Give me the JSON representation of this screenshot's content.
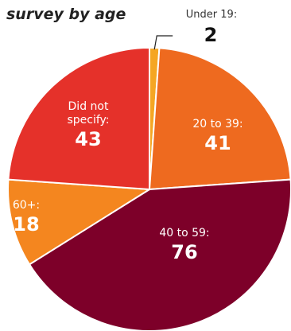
{
  "chart_data": {
    "type": "pie",
    "title": "survey by age",
    "start_angle_deg": 0,
    "direction": "clockwise",
    "slices": [
      {
        "label": "Under 19:",
        "value": 2,
        "color": "#f5a623",
        "label_position": "outside"
      },
      {
        "label": "20 to 39:",
        "value": 41,
        "color": "#ee6a1f",
        "label_position": "inside"
      },
      {
        "label": "40 to 59:",
        "value": 76,
        "color": "#7d0029",
        "label_position": "inside"
      },
      {
        "label": "60+:",
        "value": 18,
        "color": "#f4861f",
        "label_position": "inside"
      },
      {
        "label": "Did not specify:",
        "value": 43,
        "color": "#e5312a",
        "label_position": "inside"
      }
    ]
  }
}
